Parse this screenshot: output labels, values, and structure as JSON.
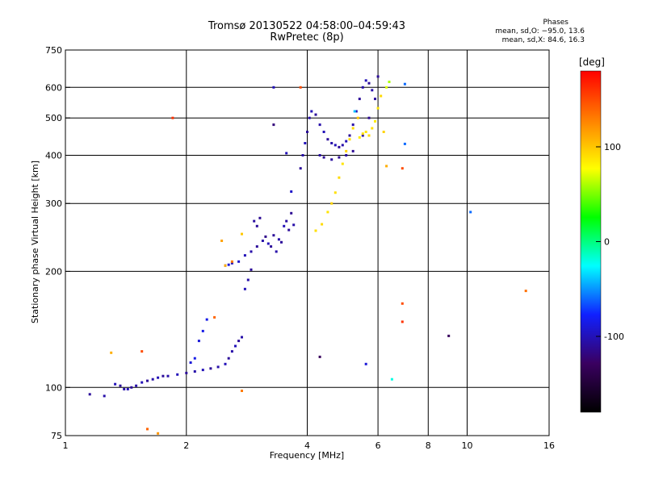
{
  "header": {
    "title_line1": "Tromsø 20130522 04:58:00–04:59:43",
    "title_line2": "RwPretec (8p)"
  },
  "phase_note": {
    "title": "Phases",
    "line_o": "mean, sd,O: −95.0, 13.6",
    "line_x": "mean, sd,X: 84.6, 16.3"
  },
  "colorbar": {
    "unit_label": "[deg]",
    "ticks": [
      100,
      0,
      -100
    ],
    "range": [
      -180,
      180
    ],
    "colormap": [
      "#000000",
      "#3a0060",
      "#1020ff",
      "#00ffff",
      "#00ff00",
      "#ffff00",
      "#ff8000",
      "#ff0000"
    ]
  },
  "chart_data": {
    "type": "scatter",
    "xlabel": "Frequency [MHz]",
    "ylabel": "Stationary phase Virtual Height [km]",
    "xscale": "log",
    "yscale": "log",
    "xlim": [
      1,
      16
    ],
    "ylim": [
      75,
      750
    ],
    "xticks": [
      1,
      2,
      4,
      6,
      8,
      10,
      16
    ],
    "yticks": [
      75,
      100,
      200,
      300,
      400,
      500,
      600,
      750
    ],
    "grid_x": [
      2,
      4,
      6,
      8,
      10
    ],
    "grid_y": [
      100,
      200,
      300,
      400,
      500,
      600
    ],
    "series": [
      {
        "mode": "O",
        "points": [
          [
            1.15,
            96,
            -110
          ],
          [
            1.25,
            95,
            -105
          ],
          [
            1.33,
            102,
            -100
          ],
          [
            1.37,
            101,
            -110
          ],
          [
            1.4,
            99,
            -105
          ],
          [
            1.43,
            99,
            -100
          ],
          [
            1.46,
            100,
            -110
          ],
          [
            1.5,
            101,
            -105
          ],
          [
            1.55,
            103,
            -100
          ],
          [
            1.6,
            104,
            -110
          ],
          [
            1.65,
            105,
            -105
          ],
          [
            1.7,
            106,
            -100
          ],
          [
            1.75,
            107,
            -110
          ],
          [
            1.8,
            107,
            -105
          ],
          [
            1.9,
            108,
            -100
          ],
          [
            2.0,
            109,
            -110
          ],
          [
            2.1,
            110,
            -105
          ],
          [
            2.2,
            111,
            -100
          ],
          [
            2.3,
            112,
            -110
          ],
          [
            2.4,
            113,
            -105
          ],
          [
            2.5,
            115,
            -100
          ],
          [
            2.55,
            119,
            -110
          ],
          [
            2.6,
            124,
            -105
          ],
          [
            2.65,
            128,
            -100
          ],
          [
            2.7,
            132,
            -110
          ],
          [
            2.75,
            135,
            -105
          ],
          [
            2.05,
            116,
            -90
          ],
          [
            2.1,
            119,
            -85
          ],
          [
            2.15,
            132,
            -90
          ],
          [
            2.2,
            140,
            -85
          ],
          [
            2.25,
            150,
            -85
          ],
          [
            2.8,
            180,
            -100
          ],
          [
            2.85,
            190,
            -105
          ],
          [
            2.9,
            202,
            -110
          ],
          [
            2.5,
            207,
            -95
          ],
          [
            2.55,
            208,
            -90
          ],
          [
            2.6,
            210,
            -100
          ],
          [
            2.7,
            212,
            -95
          ],
          [
            2.8,
            220,
            -100
          ],
          [
            2.9,
            225,
            -105
          ],
          [
            3.0,
            232,
            -110
          ],
          [
            3.1,
            240,
            -105
          ],
          [
            3.2,
            236,
            -100
          ],
          [
            3.3,
            248,
            -110
          ],
          [
            3.4,
            242,
            -105
          ],
          [
            3.5,
            262,
            -100
          ],
          [
            3.6,
            256,
            -110
          ],
          [
            3.7,
            264,
            -105
          ],
          [
            3.0,
            262,
            -110
          ],
          [
            3.15,
            246,
            -115
          ],
          [
            3.25,
            232,
            -110
          ],
          [
            3.35,
            225,
            -105
          ],
          [
            3.45,
            238,
            -110
          ],
          [
            2.95,
            270,
            -108
          ],
          [
            3.05,
            275,
            -112
          ],
          [
            3.55,
            270,
            -108
          ],
          [
            3.65,
            283,
            -112
          ],
          [
            3.85,
            370,
            -110
          ],
          [
            3.9,
            400,
            -105
          ],
          [
            3.95,
            430,
            -100
          ],
          [
            4.0,
            460,
            -110
          ],
          [
            4.05,
            500,
            -105
          ],
          [
            4.1,
            520,
            -100
          ],
          [
            4.2,
            510,
            -110
          ],
          [
            4.3,
            480,
            -105
          ],
          [
            4.4,
            460,
            -100
          ],
          [
            4.5,
            440,
            -110
          ],
          [
            4.6,
            430,
            -105
          ],
          [
            4.7,
            425,
            -100
          ],
          [
            4.8,
            420,
            -110
          ],
          [
            4.9,
            425,
            -105
          ],
          [
            5.0,
            435,
            -100
          ],
          [
            5.1,
            450,
            -110
          ],
          [
            5.2,
            480,
            -105
          ],
          [
            5.3,
            520,
            -100
          ],
          [
            5.4,
            560,
            -110
          ],
          [
            5.5,
            600,
            -105
          ],
          [
            5.6,
            625,
            -100
          ],
          [
            5.7,
            615,
            -110
          ],
          [
            5.8,
            590,
            -105
          ],
          [
            4.3,
            400,
            -108
          ],
          [
            4.4,
            395,
            -112
          ],
          [
            4.6,
            390,
            -108
          ],
          [
            4.8,
            395,
            -112
          ],
          [
            5.0,
            400,
            -108
          ],
          [
            5.2,
            410,
            -112
          ],
          [
            5.5,
            450,
            -108
          ],
          [
            5.7,
            500,
            -112
          ],
          [
            5.9,
            560,
            -108
          ],
          [
            6.0,
            640,
            -110
          ],
          [
            3.3,
            600,
            -100
          ],
          [
            3.3,
            480,
            -120
          ],
          [
            3.55,
            405,
            -100
          ],
          [
            3.65,
            322,
            -95
          ],
          [
            4.3,
            120,
            -130
          ],
          [
            5.6,
            115,
            -90
          ],
          [
            9.0,
            136,
            -130
          ],
          [
            10.2,
            285,
            -60
          ],
          [
            7.0,
            612,
            -60
          ],
          [
            7.0,
            428,
            -60
          ],
          [
            6.5,
            105,
            -20
          ],
          [
            5.25,
            520,
            -40
          ]
        ]
      },
      {
        "mode": "X",
        "points": [
          [
            4.2,
            255,
            90
          ],
          [
            4.35,
            265,
            92
          ],
          [
            4.5,
            285,
            88
          ],
          [
            4.6,
            300,
            95
          ],
          [
            4.7,
            320,
            90
          ],
          [
            4.8,
            350,
            92
          ],
          [
            4.9,
            380,
            88
          ],
          [
            5.0,
            410,
            95
          ],
          [
            5.1,
            440,
            90
          ],
          [
            5.2,
            470,
            92
          ],
          [
            5.4,
            445,
            85
          ],
          [
            5.5,
            455,
            90
          ],
          [
            5.6,
            460,
            88
          ],
          [
            5.7,
            450,
            92
          ],
          [
            5.8,
            470,
            90
          ],
          [
            5.9,
            490,
            85
          ],
          [
            6.0,
            530,
            88
          ],
          [
            6.1,
            570,
            92
          ],
          [
            6.3,
            600,
            70
          ],
          [
            6.4,
            620,
            60
          ],
          [
            5.35,
            500,
            100
          ],
          [
            6.2,
            460,
            95
          ],
          [
            6.3,
            375,
            110
          ],
          [
            6.9,
            370,
            150
          ],
          [
            6.9,
            165,
            150
          ],
          [
            6.9,
            148,
            160
          ],
          [
            1.6,
            78,
            140
          ],
          [
            1.7,
            76,
            120
          ],
          [
            1.3,
            123,
            110
          ],
          [
            1.55,
            124,
            150
          ],
          [
            2.35,
            152,
            140
          ],
          [
            2.5,
            207,
            110
          ],
          [
            2.45,
            240,
            115
          ],
          [
            2.75,
            98,
            130
          ],
          [
            3.85,
            600,
            150
          ],
          [
            14.0,
            178,
            135
          ],
          [
            1.85,
            500,
            160
          ],
          [
            2.6,
            212,
            130
          ],
          [
            2.75,
            250,
            100
          ]
        ]
      }
    ]
  }
}
